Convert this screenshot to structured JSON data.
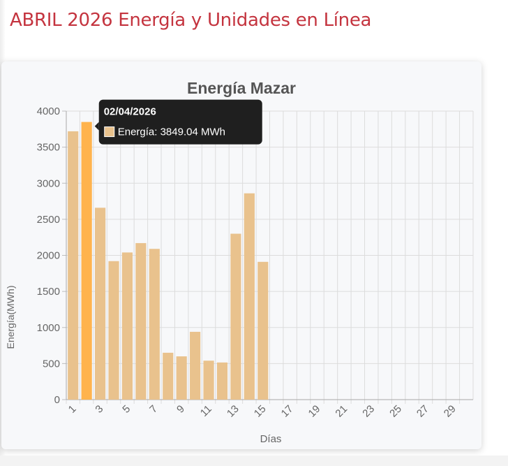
{
  "page": {
    "title": "ABRIL 2026 Energía y Unidades en Línea"
  },
  "colors": {
    "title": "#c4343f",
    "bar": "#e9c28d",
    "bar_highlight": "#ffb34d",
    "grid": "#dcdcdc",
    "tooltip_bg": "#1f1f1f"
  },
  "chart_data": {
    "type": "bar",
    "title": "Energía Mazar",
    "xlabel": "Días",
    "ylabel": "Energía(MWh)",
    "categories": [
      "1",
      "2",
      "3",
      "4",
      "5",
      "6",
      "7",
      "8",
      "9",
      "10",
      "11",
      "12",
      "13",
      "14",
      "15",
      "16",
      "17",
      "18",
      "19",
      "20",
      "21",
      "22",
      "23",
      "24",
      "25",
      "26",
      "27",
      "28",
      "29",
      "30"
    ],
    "x_tick_labels": [
      "1",
      "3",
      "5",
      "7",
      "9",
      "11",
      "13",
      "15",
      "17",
      "19",
      "21",
      "23",
      "25",
      "27",
      "29"
    ],
    "series": [
      {
        "name": "Energía",
        "values": [
          3720,
          3849.04,
          2660,
          1920,
          2040,
          2170,
          2090,
          650,
          600,
          940,
          540,
          515,
          2300,
          2860,
          1910,
          null,
          null,
          null,
          null,
          null,
          null,
          null,
          null,
          null,
          null,
          null,
          null,
          null,
          null,
          null
        ]
      }
    ],
    "ylim": [
      0,
      4000
    ],
    "y_ticks": [
      0,
      500,
      1000,
      1500,
      2000,
      2500,
      3000,
      3500,
      4000
    ],
    "grid": true,
    "legend": "none",
    "tooltip": {
      "category": "2",
      "title": "02/04/2026",
      "label": "Energía: 3849.04 MWh"
    }
  }
}
